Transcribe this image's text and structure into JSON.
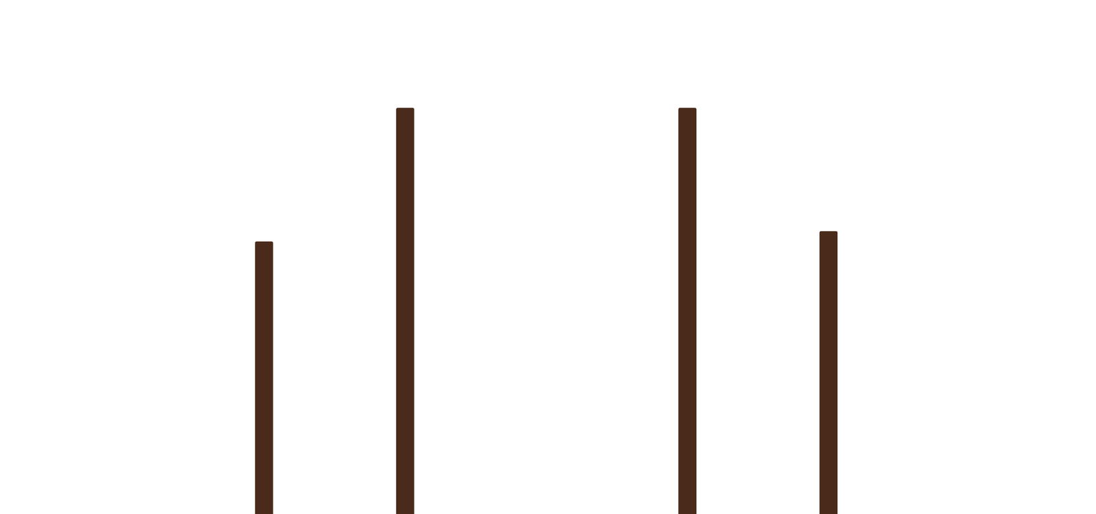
{
  "chart_data": {
    "type": "bar",
    "categories": [
      null,
      null,
      null,
      null,
      null
    ],
    "values": [
      53,
      79,
      null,
      79,
      55
    ],
    "color": "#4a2b1b",
    "ylim": [
      0,
      100
    ],
    "grid": false,
    "tick_labels": false
  }
}
